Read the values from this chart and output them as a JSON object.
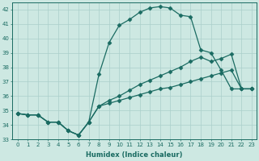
{
  "xlabel": "Humidex (Indice chaleur)",
  "ylabel": "",
  "background_color": "#cde8e2",
  "grid_color": "#aacfca",
  "line_color": "#1a6b62",
  "xlim": [
    -0.5,
    23.5
  ],
  "ylim": [
    33,
    42.5
  ],
  "yticks": [
    33,
    34,
    35,
    36,
    37,
    38,
    39,
    40,
    41,
    42
  ],
  "xticks": [
    0,
    1,
    2,
    3,
    4,
    5,
    6,
    7,
    8,
    9,
    10,
    11,
    12,
    13,
    14,
    15,
    16,
    17,
    18,
    19,
    20,
    21,
    22,
    23
  ],
  "line1_x": [
    0,
    1,
    2,
    3,
    4,
    5,
    6,
    7,
    8,
    9,
    10,
    11,
    12,
    13,
    14,
    15,
    16,
    17,
    18,
    19,
    20,
    21,
    22,
    23
  ],
  "line1_y": [
    34.8,
    34.7,
    34.7,
    34.2,
    34.2,
    33.6,
    33.3,
    34.2,
    37.5,
    39.7,
    40.9,
    41.3,
    41.8,
    42.1,
    42.2,
    42.1,
    41.6,
    41.5,
    39.2,
    39.0,
    37.8,
    36.5,
    36.5,
    36.5
  ],
  "line2_x": [
    0,
    1,
    2,
    3,
    4,
    5,
    6,
    7,
    8,
    9,
    10,
    11,
    12,
    13,
    14,
    15,
    16,
    17,
    18,
    19,
    20,
    21,
    22,
    23
  ],
  "line2_y": [
    34.8,
    34.7,
    34.7,
    34.2,
    34.2,
    33.6,
    33.3,
    34.2,
    35.3,
    35.7,
    36.0,
    36.4,
    36.8,
    37.1,
    37.4,
    37.7,
    38.0,
    38.4,
    38.7,
    38.4,
    38.6,
    38.9,
    36.5,
    36.5
  ],
  "line3_x": [
    0,
    1,
    2,
    3,
    4,
    5,
    6,
    7,
    8,
    9,
    10,
    11,
    12,
    13,
    14,
    15,
    16,
    17,
    18,
    19,
    20,
    21,
    22,
    23
  ],
  "line3_y": [
    34.8,
    34.7,
    34.7,
    34.2,
    34.2,
    33.6,
    33.3,
    34.2,
    35.3,
    35.5,
    35.7,
    35.9,
    36.1,
    36.3,
    36.5,
    36.6,
    36.8,
    37.0,
    37.2,
    37.4,
    37.6,
    37.8,
    36.5,
    36.5
  ],
  "xlabel_fontsize": 6,
  "tick_fontsize": 5
}
